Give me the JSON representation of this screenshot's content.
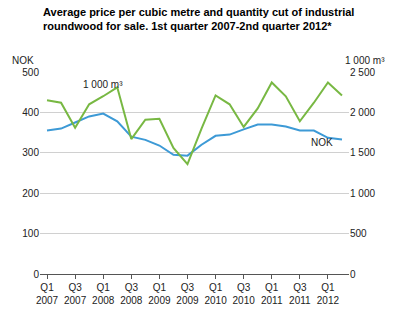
{
  "chart_data": {
    "type": "line",
    "title": "Average price per cubic metre and quantity cut of industrial\nroundwood for sale. 1st quarter 2007-2nd quarter 2012*",
    "y_label": "NOK",
    "y2_label": "1 000 m³",
    "categories": [
      "Q1\n2007",
      null,
      "Q3\n2007",
      null,
      "Q1\n2008",
      null,
      "Q3\n2008",
      null,
      "Q1\n2009",
      null,
      "Q3\n2009",
      null,
      "Q1\n2010",
      null,
      "Q3\n2010",
      null,
      "Q1\n2011",
      null,
      "Q3\n2011",
      null,
      "Q1\n2012",
      null
    ],
    "series": [
      {
        "name": "1 000 m³",
        "color": "#78b843",
        "axis": "y2",
        "values": [
          2150,
          2120,
          1810,
          2100,
          2200,
          2310,
          1670,
          1910,
          1920,
          1560,
          1360,
          1800,
          2210,
          2100,
          1820,
          2050,
          2370,
          2200,
          1890,
          2120,
          2370,
          2210
        ]
      },
      {
        "name": "NOK",
        "color": "#3d9ad6",
        "values": [
          355,
          360,
          375,
          390,
          397,
          378,
          340,
          332,
          318,
          295,
          293,
          320,
          342,
          345,
          358,
          370,
          370,
          365,
          355,
          355,
          337,
          333
        ]
      }
    ],
    "ylim": [
      0,
      500
    ],
    "yticks": [
      0,
      100,
      200,
      300,
      400,
      500
    ],
    "y2lim": [
      0,
      2500
    ],
    "y2ticks": [
      0,
      500,
      {
        "value": 1000,
        "label": "1 000"
      },
      {
        "value": 1500,
        "label": "1 500"
      },
      {
        "value": 2000,
        "label": "2 000"
      },
      {
        "value": 2500,
        "label": "2 500"
      }
    ],
    "grid": true
  }
}
